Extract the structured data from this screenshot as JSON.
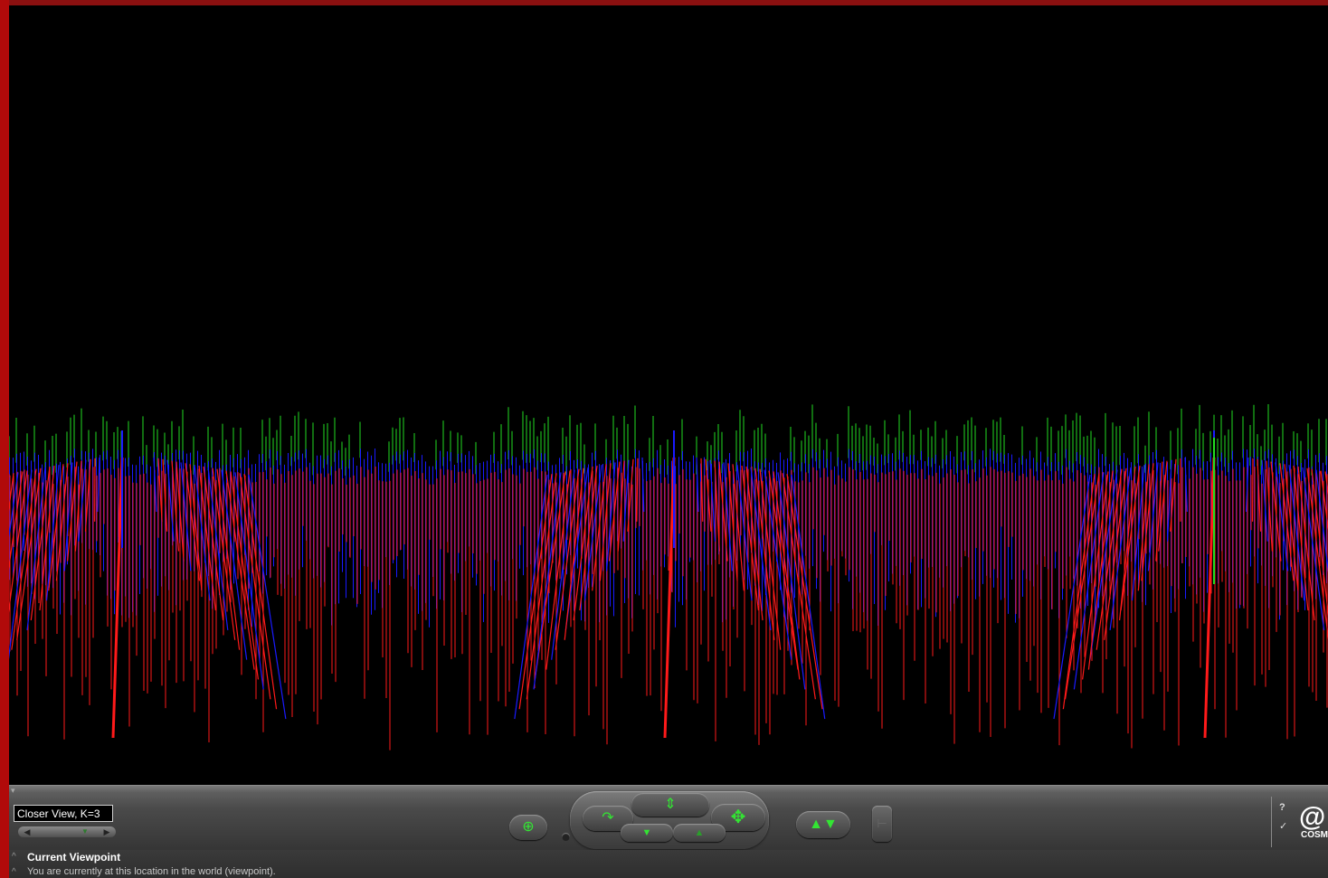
{
  "viewpoint": {
    "current": "Closer View, K=3"
  },
  "status": {
    "title": "Current Viewpoint",
    "description": "You are currently at this location in the world (viewpoint)."
  },
  "branding": {
    "logo_text": "COSM"
  },
  "colors": {
    "frame": "#b10a0a",
    "scene_background": "#000000",
    "stick_red": "#ff1a1a",
    "stick_blue": "#1a1aff",
    "stick_green": "#22dd22",
    "control_green": "#33e533"
  },
  "icons": {
    "navigation": [
      "seek-target-icon",
      "walk-icon",
      "slide-vertical-icon",
      "pan-move-icon",
      "tilt-down-icon",
      "tilt-up-icon",
      "examine-icon",
      "straighten-icon",
      "help-icon",
      "cosmo-logo-icon"
    ]
  }
}
